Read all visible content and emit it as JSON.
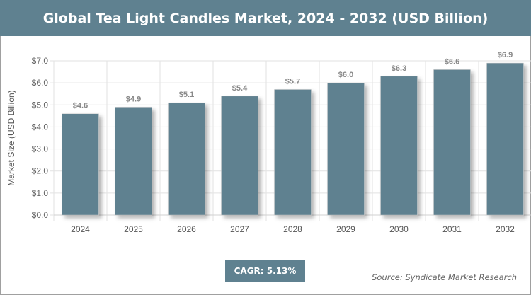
{
  "title": "Global Tea Light Candles Market, 2024 - 2032 (USD Billion)",
  "cagr": "CAGR: 5.13%",
  "source": "Source: Syndicate Market Research",
  "colors": {
    "bar": "#5f8190",
    "header": "#5f8190"
  },
  "chart_data": {
    "type": "bar",
    "title": "Global Tea Light Candles Market, 2024 - 2032 (USD Billion)",
    "xlabel": "",
    "ylabel": "Market Size (USD Billion)",
    "categories": [
      "2024",
      "2025",
      "2026",
      "2027",
      "2028",
      "2029",
      "2030",
      "2031",
      "2032"
    ],
    "values": [
      4.6,
      4.9,
      5.1,
      5.4,
      5.7,
      6.0,
      6.3,
      6.6,
      6.9
    ],
    "data_labels": [
      "$4.6",
      "$4.9",
      "$5.1",
      "$5.4",
      "$5.7",
      "$6.0",
      "$6.3",
      "$6.6",
      "$6.9"
    ],
    "ylim": [
      0,
      7
    ],
    "yticks": [
      "$0.0",
      "$1.0",
      "$2.0",
      "$3.0",
      "$4.0",
      "$5.0",
      "$6.0",
      "$7.0"
    ],
    "grid": true,
    "legend": "none"
  }
}
